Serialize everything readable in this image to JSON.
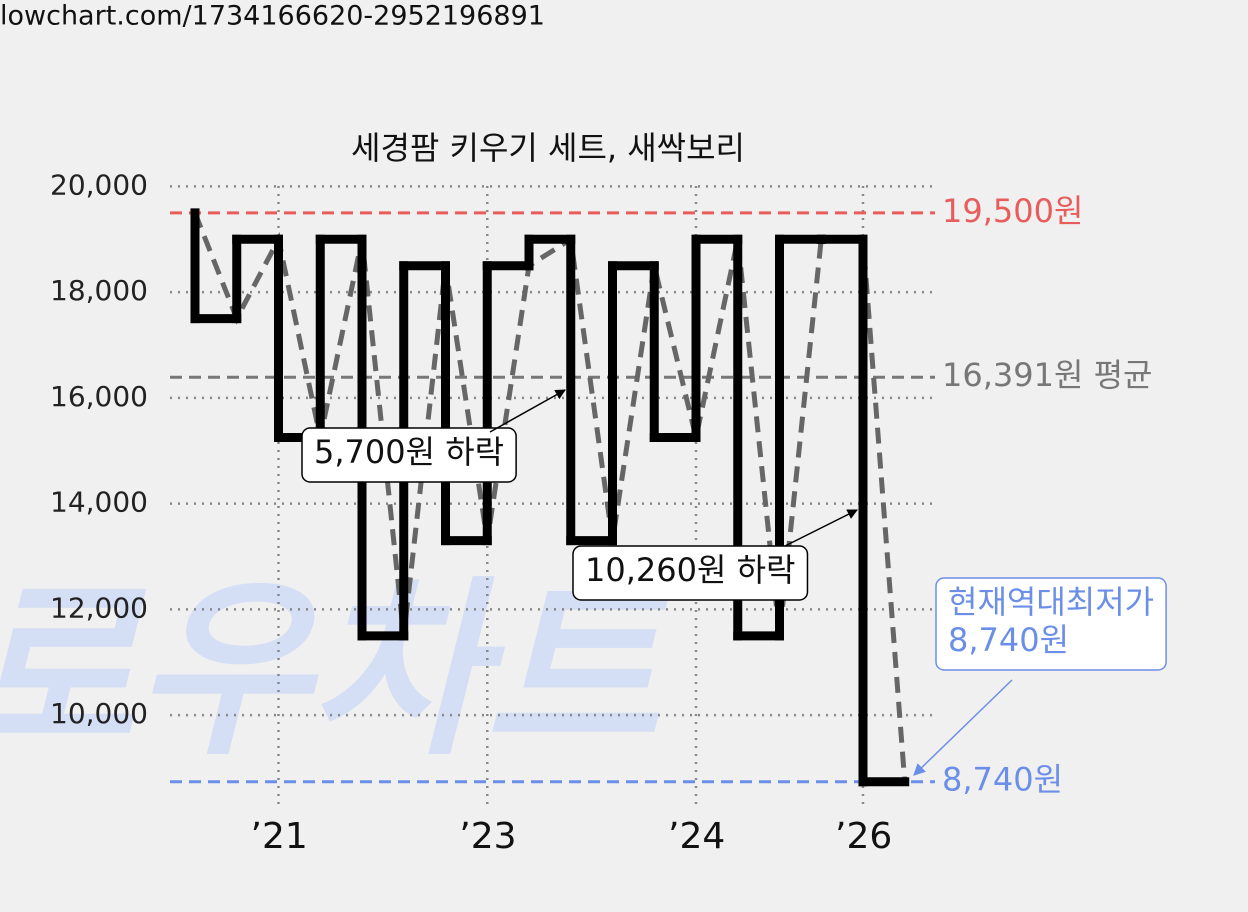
{
  "url": "lowchart.com/1734166620-2952196891",
  "watermark": "로우차트",
  "chart_data": {
    "type": "step-line",
    "title": "세경팜 키우기 세트, 새싹보리",
    "categories": [
      null,
      null,
      "’21",
      null,
      null,
      null,
      null,
      "’23",
      null,
      null,
      null,
      null,
      "’24",
      null,
      null,
      null,
      "’26",
      null
    ],
    "values": [
      19500,
      17500,
      19000,
      15250,
      19000,
      11500,
      18500,
      13300,
      18500,
      19000,
      13300,
      18500,
      15250,
      19000,
      11500,
      19000,
      19000,
      8740
    ],
    "color": "#000000",
    "trend_color": "#666666",
    "ylim": [
      8300,
      20500
    ],
    "yticks": [
      {
        "value": 10000,
        "label": "10,000"
      },
      {
        "value": 12000,
        "label": "12,000"
      },
      {
        "value": 14000,
        "label": "14,000"
      },
      {
        "value": 16000,
        "label": "16,000"
      },
      {
        "value": 18000,
        "label": "18,000"
      },
      {
        "value": 20000,
        "label": "20,000"
      }
    ],
    "grid": true,
    "reference_lines": [
      {
        "value": 19500,
        "label": "19,500원",
        "color": "#e85c5c"
      },
      {
        "value": 16391,
        "label": "16,391원 평균",
        "color": "#777777"
      },
      {
        "value": 8740,
        "label": "8,740원",
        "color": "#6b8fe8"
      }
    ],
    "annotations": [
      {
        "text": "5,700원 하락"
      },
      {
        "text": "10,260원 하락"
      },
      {
        "lines": [
          "현재역대최저가",
          "8,740원"
        ]
      }
    ]
  }
}
